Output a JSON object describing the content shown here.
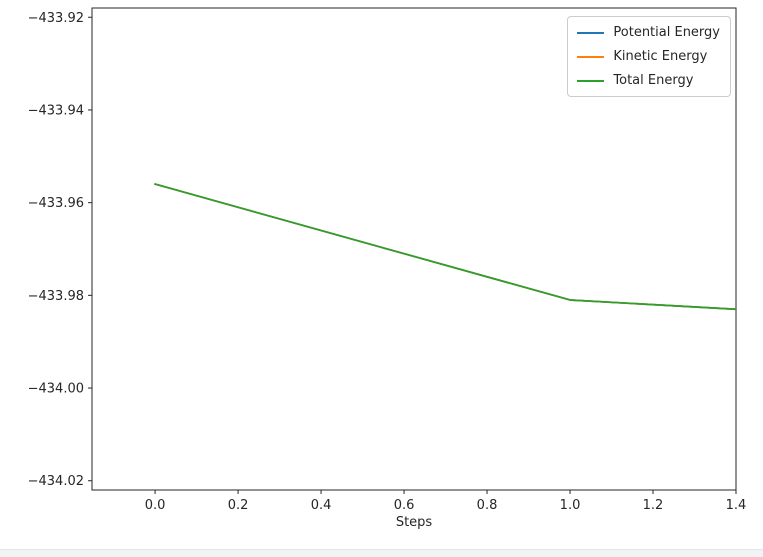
{
  "figure": {
    "background": "#ffffff",
    "spine_color": "#262626",
    "tick_color": "#262626"
  },
  "chart_data": {
    "type": "line",
    "title": "",
    "xlabel": "Steps",
    "ylabel": "",
    "x": [
      0.0,
      1.0,
      1.4
    ],
    "series": [
      {
        "name": "Potential Energy",
        "color": "#1f77b4",
        "values": [
          -433.956,
          -433.981,
          -433.983
        ]
      },
      {
        "name": "Kinetic Energy",
        "color": "#ff7f0e",
        "values": [
          -433.956,
          -433.981,
          -433.983
        ]
      },
      {
        "name": "Total Energy",
        "color": "#2ca02c",
        "values": [
          -433.956,
          -433.981,
          -433.983
        ]
      }
    ],
    "xlim": [
      -0.152,
      1.4
    ],
    "ylim": [
      -434.022,
      -433.918
    ],
    "xticks": [
      0.0,
      0.2,
      0.4,
      0.6,
      0.8,
      1.0,
      1.2,
      1.4
    ],
    "xtick_labels": [
      "0.0",
      "0.2",
      "0.4",
      "0.6",
      "0.8",
      "1.0",
      "1.2",
      "1.4"
    ],
    "yticks": [
      -433.92,
      -433.94,
      -433.96,
      -433.98,
      -434.0,
      -434.02
    ],
    "ytick_labels": [
      "−433.92",
      "−433.94",
      "−433.96",
      "−433.98",
      "−434.00",
      "−434.02"
    ],
    "legend_position": "upper right",
    "grid": false
  }
}
